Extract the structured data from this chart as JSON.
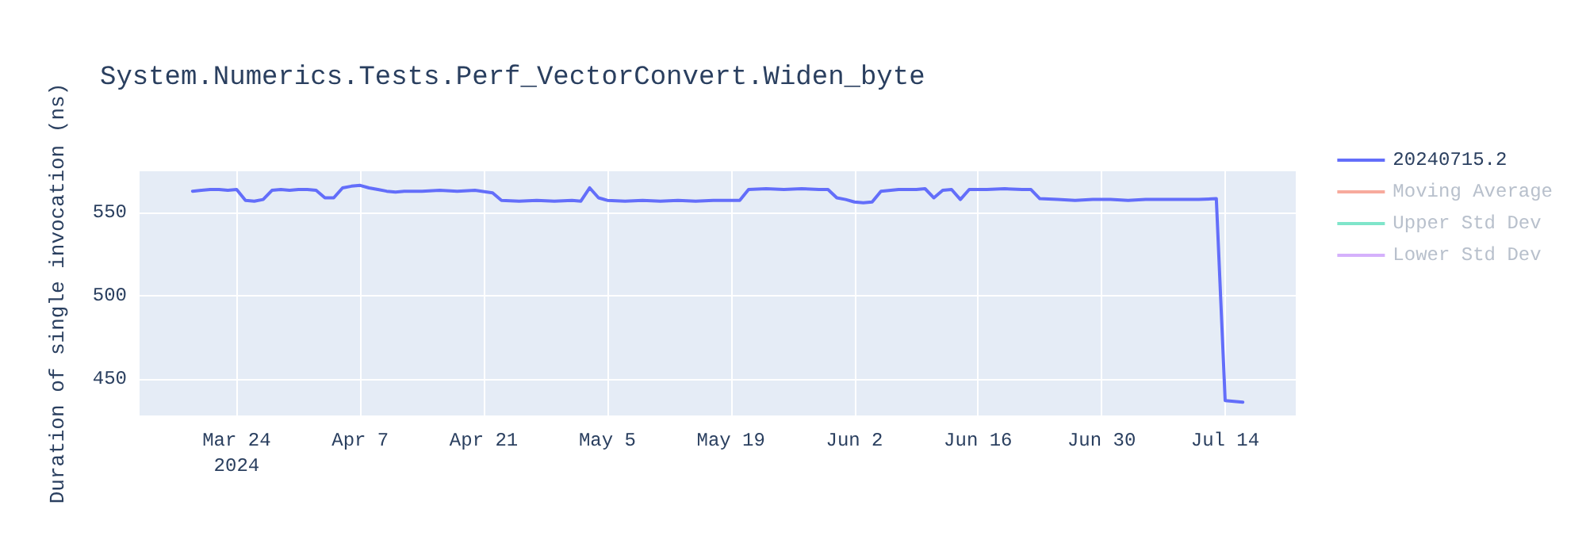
{
  "chart_data": {
    "type": "line",
    "title": "System.Numerics.Tests.Perf_VectorConvert.Widen_byte",
    "ylabel": "Duration of single invocation (ns)",
    "x": [
      "2024-03-19",
      "2024-03-20",
      "2024-03-21",
      "2024-03-22",
      "2024-03-23",
      "2024-03-24",
      "2024-03-25",
      "2024-03-26",
      "2024-03-27",
      "2024-03-28",
      "2024-03-29",
      "2024-03-30",
      "2024-03-31",
      "2024-04-01",
      "2024-04-02",
      "2024-04-03",
      "2024-04-04",
      "2024-04-05",
      "2024-04-06",
      "2024-04-07",
      "2024-04-08",
      "2024-04-09",
      "2024-04-10",
      "2024-04-11",
      "2024-04-12",
      "2024-04-14",
      "2024-04-16",
      "2024-04-18",
      "2024-04-20",
      "2024-04-22",
      "2024-04-23",
      "2024-04-25",
      "2024-04-27",
      "2024-04-29",
      "2024-05-01",
      "2024-05-02",
      "2024-05-03",
      "2024-05-04",
      "2024-05-05",
      "2024-05-07",
      "2024-05-09",
      "2024-05-11",
      "2024-05-13",
      "2024-05-15",
      "2024-05-17",
      "2024-05-19",
      "2024-05-20",
      "2024-05-21",
      "2024-05-23",
      "2024-05-25",
      "2024-05-27",
      "2024-05-29",
      "2024-05-30",
      "2024-05-31",
      "2024-06-01",
      "2024-06-02",
      "2024-06-03",
      "2024-06-04",
      "2024-06-05",
      "2024-06-07",
      "2024-06-09",
      "2024-06-10",
      "2024-06-11",
      "2024-06-12",
      "2024-06-13",
      "2024-06-14",
      "2024-06-15",
      "2024-06-17",
      "2024-06-19",
      "2024-06-21",
      "2024-06-22",
      "2024-06-23",
      "2024-06-25",
      "2024-06-27",
      "2024-06-29",
      "2024-07-01",
      "2024-07-03",
      "2024-07-05",
      "2024-07-07",
      "2024-07-09",
      "2024-07-11",
      "2024-07-13",
      "2024-07-14",
      "2024-07-15",
      "2024-07-16"
    ],
    "series": [
      {
        "name": "20240715.2",
        "color": "#636efa",
        "values": [
          563,
          563.5,
          564,
          564,
          563.5,
          564,
          557.5,
          557,
          558,
          563.5,
          564,
          563.5,
          564,
          564,
          563.5,
          559,
          559,
          565,
          566,
          566.5,
          565,
          564,
          563,
          562.5,
          563,
          563,
          563.5,
          563,
          563.5,
          562,
          557.5,
          557,
          557.5,
          557,
          557.5,
          557,
          565,
          559,
          557.5,
          557,
          557.5,
          557,
          557.5,
          557,
          557.5,
          557.5,
          557.5,
          564,
          564.5,
          564,
          564.5,
          564,
          564,
          559,
          558,
          556.5,
          556,
          556.5,
          563,
          564,
          564,
          564.5,
          559,
          563.5,
          564,
          558,
          564,
          564,
          564.5,
          564,
          564,
          558.5,
          558,
          557.5,
          558,
          558,
          557.5,
          558,
          558,
          558,
          558,
          558.5,
          437,
          436.5,
          436
        ]
      },
      {
        "name": "Moving Average",
        "color": "#ef553b",
        "values": [
          null,
          null,
          null,
          null,
          null,
          null,
          null,
          null,
          null,
          null,
          null,
          null,
          null,
          null,
          null,
          null,
          null,
          null,
          null,
          null,
          null,
          null,
          null,
          null,
          null,
          null,
          null,
          null,
          null,
          null,
          null,
          null,
          null,
          null,
          null,
          null,
          null,
          null,
          null,
          null,
          null,
          null,
          null,
          null,
          null,
          null,
          null,
          null,
          null,
          null,
          null,
          null,
          null,
          null,
          null,
          null,
          null,
          null,
          null,
          null,
          null,
          null,
          null,
          null,
          null,
          null,
          null,
          null,
          null,
          null,
          null,
          null,
          null,
          null,
          null,
          null,
          null,
          null,
          null,
          null,
          null,
          null,
          null,
          null,
          null
        ]
      },
      {
        "name": "Upper Std Dev",
        "color": "#00cc96",
        "values": [
          null,
          null,
          null,
          null,
          null,
          null,
          null,
          null,
          null,
          null,
          null,
          null,
          null,
          null,
          null,
          null,
          null,
          null,
          null,
          null,
          null,
          null,
          null,
          null,
          null,
          null,
          null,
          null,
          null,
          null,
          null,
          null,
          null,
          null,
          null,
          null,
          null,
          null,
          null,
          null,
          null,
          null,
          null,
          null,
          null,
          null,
          null,
          null,
          null,
          null,
          null,
          null,
          null,
          null,
          null,
          null,
          null,
          null,
          null,
          null,
          null,
          null,
          null,
          null,
          null,
          null,
          null,
          null,
          null,
          null,
          null,
          null,
          null,
          null,
          null,
          null,
          null,
          null,
          null,
          null,
          null,
          null,
          null,
          null,
          null
        ]
      },
      {
        "name": "Lower Std Dev",
        "color": "#ab63fa",
        "values": [
          null,
          null,
          null,
          null,
          null,
          null,
          null,
          null,
          null,
          null,
          null,
          null,
          null,
          null,
          null,
          null,
          null,
          null,
          null,
          null,
          null,
          null,
          null,
          null,
          null,
          null,
          null,
          null,
          null,
          null,
          null,
          null,
          null,
          null,
          null,
          null,
          null,
          null,
          null,
          null,
          null,
          null,
          null,
          null,
          null,
          null,
          null,
          null,
          null,
          null,
          null,
          null,
          null,
          null,
          null,
          null,
          null,
          null,
          null,
          null,
          null,
          null,
          null,
          null,
          null,
          null,
          null,
          null,
          null,
          null,
          null,
          null,
          null,
          null,
          null,
          null,
          null,
          null,
          null,
          null,
          null,
          null,
          null,
          null,
          null
        ]
      }
    ],
    "xlim": [
      "2024-03-13",
      "2024-07-22"
    ],
    "xticks": [
      {
        "value": "2024-03-24",
        "label": "Mar 24\n2024"
      },
      {
        "value": "2024-04-07",
        "label": "Apr 7"
      },
      {
        "value": "2024-04-21",
        "label": "Apr 21"
      },
      {
        "value": "2024-05-05",
        "label": "May 5"
      },
      {
        "value": "2024-05-19",
        "label": "May 19"
      },
      {
        "value": "2024-06-02",
        "label": "Jun 2"
      },
      {
        "value": "2024-06-16",
        "label": "Jun 16"
      },
      {
        "value": "2024-06-30",
        "label": "Jun 30"
      },
      {
        "value": "2024-07-14",
        "label": "Jul 14"
      }
    ],
    "ylim": [
      428,
      575
    ],
    "yticks": [
      450,
      500,
      550
    ],
    "grid": true,
    "legend": "top right"
  }
}
